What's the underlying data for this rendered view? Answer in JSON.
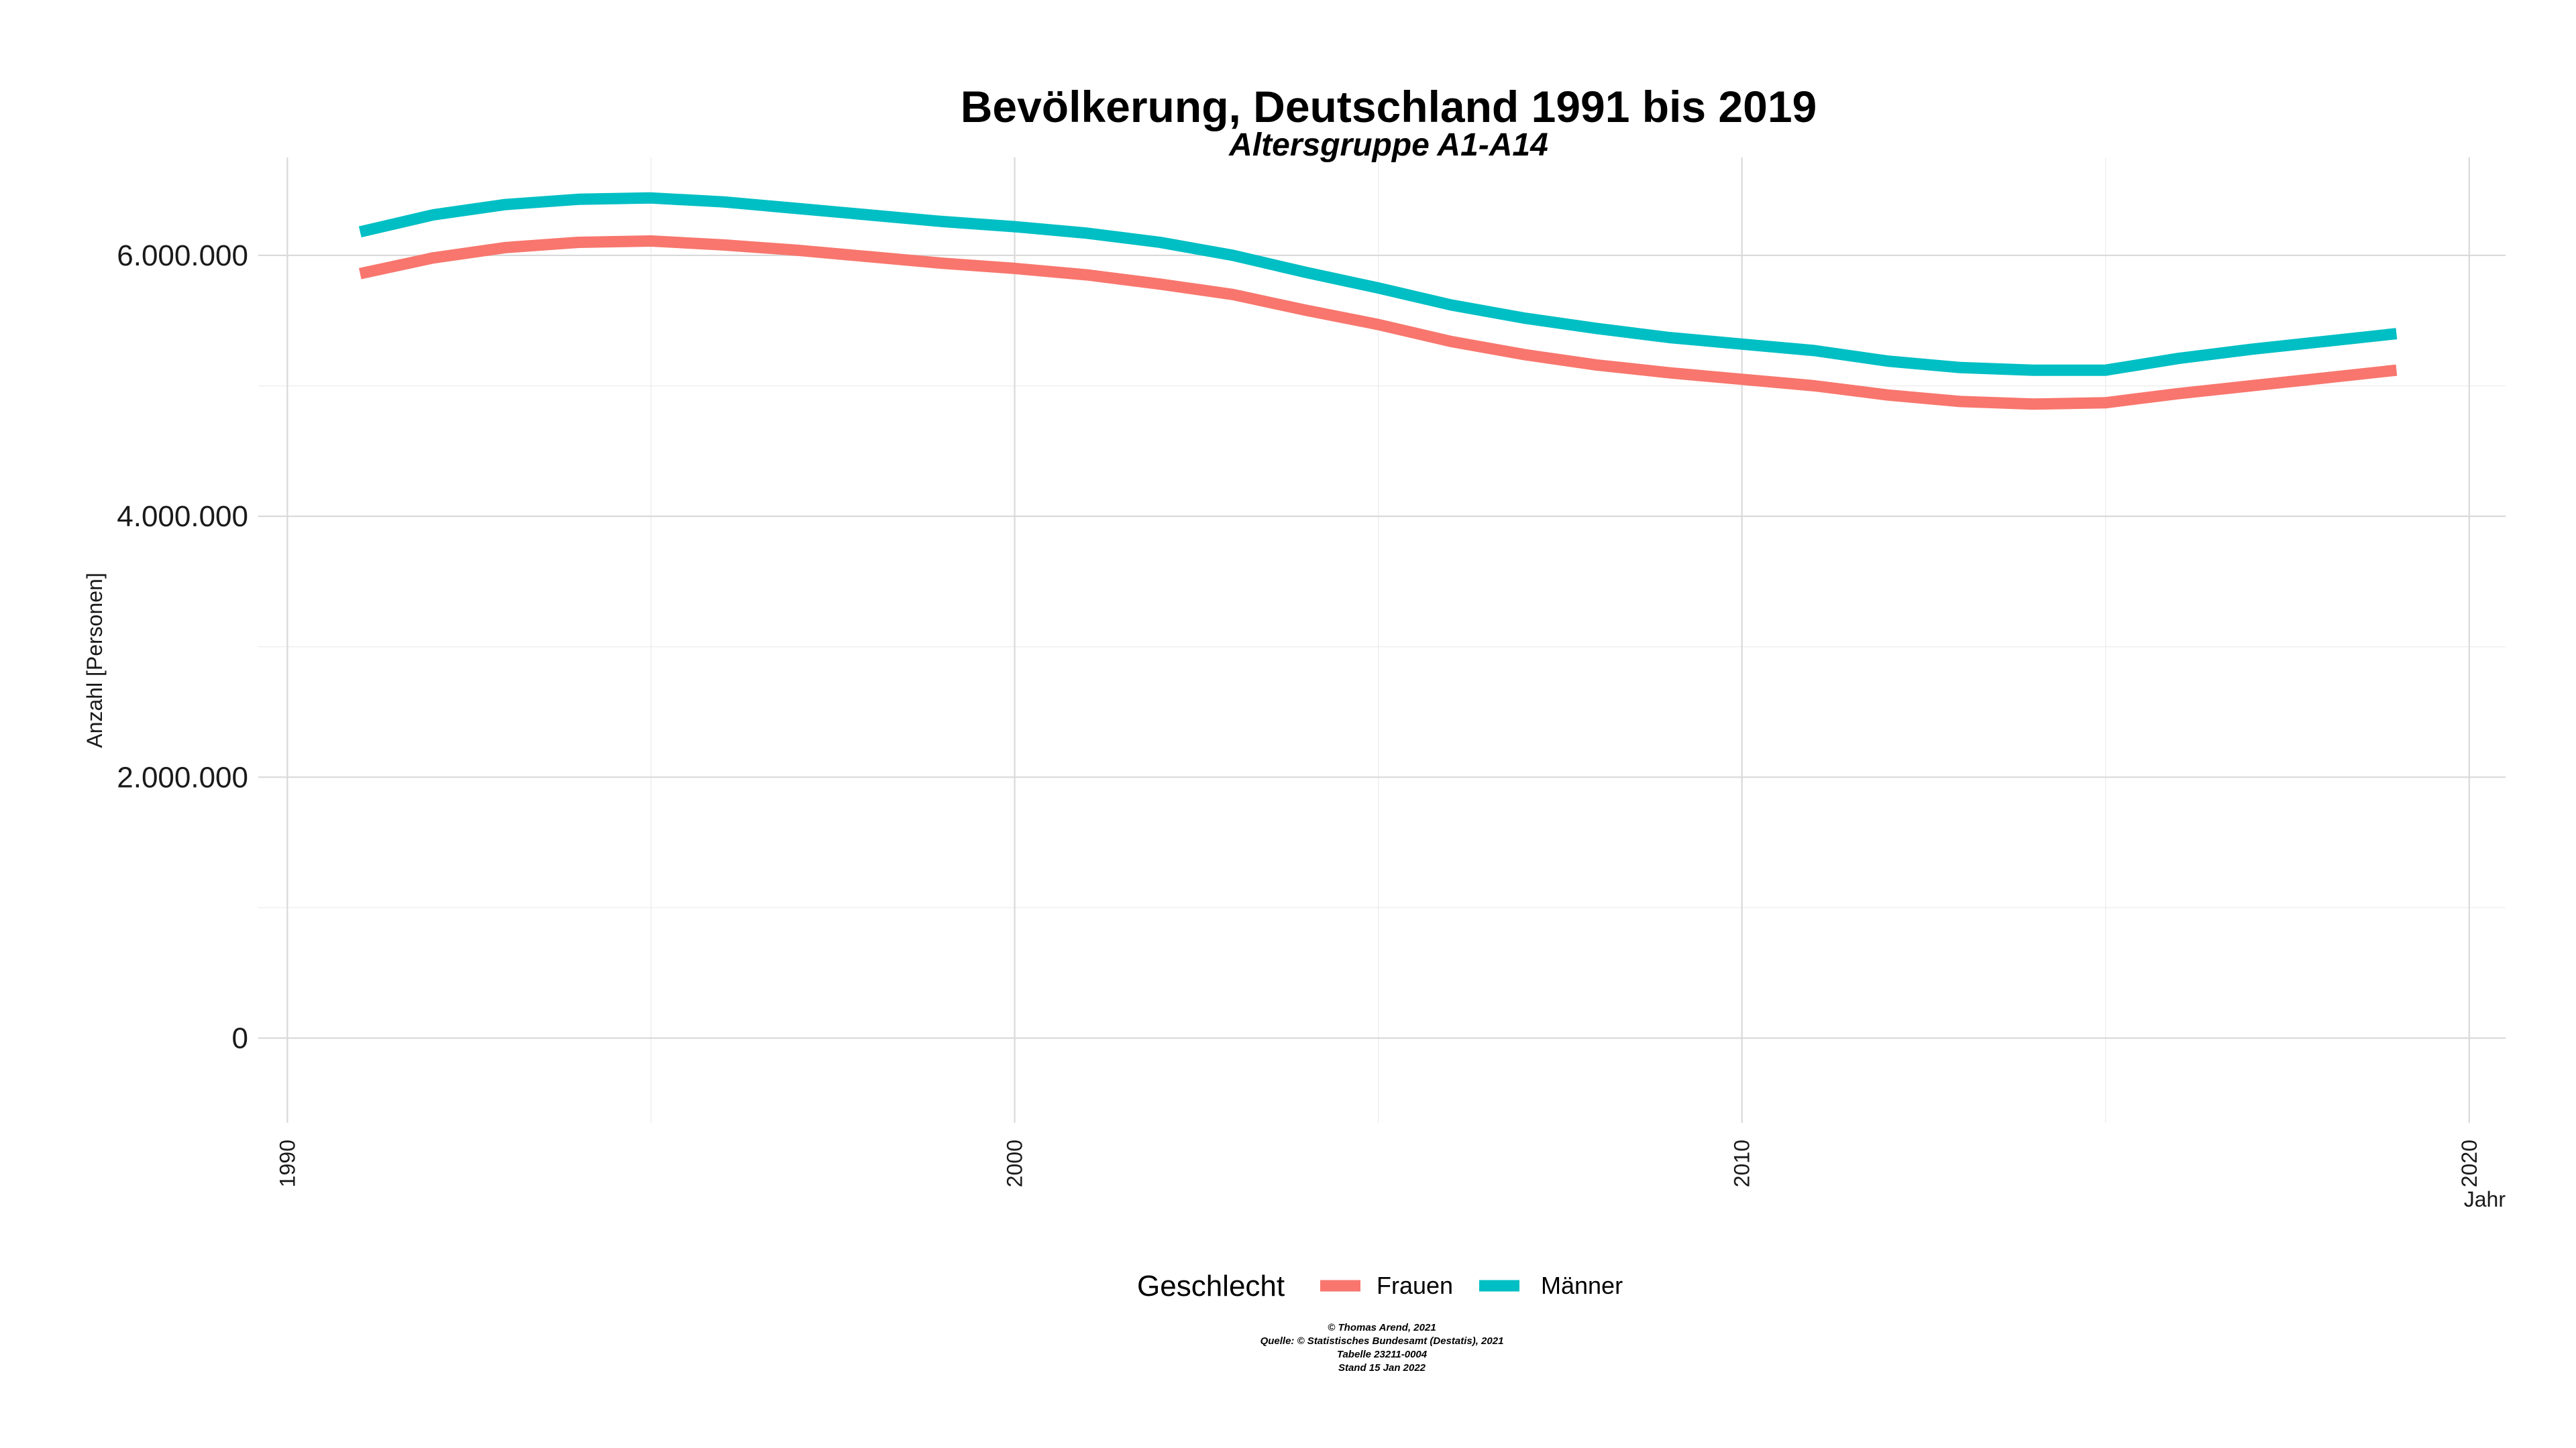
{
  "chart_data": {
    "type": "line",
    "title": "Bevölkerung, Deutschland 1991 bis 2019",
    "subtitle": "Altersgruppe A1-A14",
    "xlabel": "Jahr",
    "ylabel": "Anzahl [Personen]",
    "xlim": [
      1990,
      2020
    ],
    "ylim": [
      0,
      6500000
    ],
    "x_ticks": [
      1990,
      2000,
      2010,
      2020
    ],
    "x_tick_labels": [
      "1990",
      "2000",
      "2010",
      "2020"
    ],
    "y_ticks": [
      0,
      2000000,
      4000000,
      6000000
    ],
    "y_tick_labels": [
      "0",
      "2.000.000",
      "4.000.000",
      "6.000.000"
    ],
    "grid": true,
    "legend_position": "bottom",
    "legend_title": "Geschlecht",
    "x": [
      1991,
      1992,
      1993,
      1994,
      1995,
      1996,
      1997,
      1998,
      1999,
      2000,
      2001,
      2002,
      2003,
      2004,
      2005,
      2006,
      2007,
      2008,
      2009,
      2010,
      2011,
      2012,
      2013,
      2014,
      2015,
      2016,
      2017,
      2018,
      2019
    ],
    "series": [
      {
        "name": "Frauen",
        "color": "#F8766D",
        "values": [
          5860000,
          5980000,
          6060000,
          6100000,
          6110000,
          6080000,
          6040000,
          5990000,
          5940000,
          5900000,
          5850000,
          5780000,
          5700000,
          5580000,
          5470000,
          5340000,
          5240000,
          5160000,
          5100000,
          5050000,
          5000000,
          4930000,
          4880000,
          4860000,
          4870000,
          4940000,
          5000000,
          5060000,
          5120000
        ]
      },
      {
        "name": "Männer",
        "color": "#00BFC4",
        "values": [
          6180000,
          6310000,
          6390000,
          6430000,
          6440000,
          6410000,
          6360000,
          6310000,
          6260000,
          6220000,
          6170000,
          6100000,
          6000000,
          5870000,
          5750000,
          5620000,
          5520000,
          5440000,
          5370000,
          5320000,
          5270000,
          5190000,
          5140000,
          5120000,
          5120000,
          5210000,
          5280000,
          5340000,
          5400000
        ]
      }
    ]
  },
  "caption": {
    "line1": "© Thomas Arend, 2021",
    "line2": "Quelle: © Statistisches Bundesamt (Destatis), 2021",
    "line3": "Tabelle 23211-0004",
    "line4": "Stand 15 Jan 2022"
  }
}
